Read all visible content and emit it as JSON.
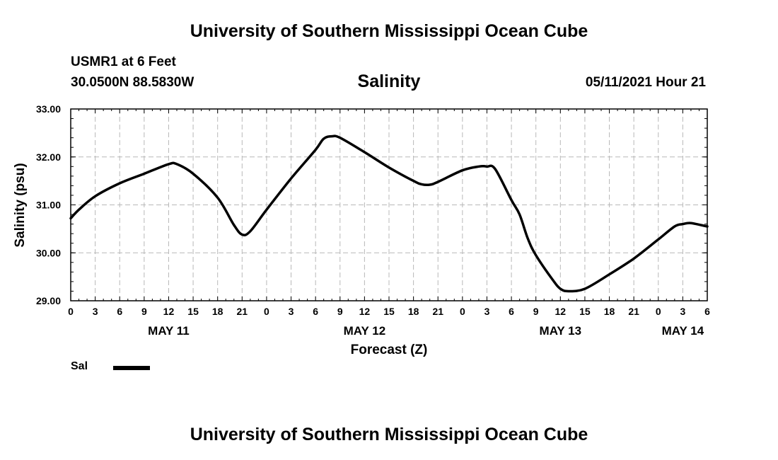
{
  "header": {
    "title_top": "University of Southern Mississippi Ocean Cube",
    "station": "USMR1 at 6 Feet",
    "coords": "30.0500N  88.5830W",
    "chart_title": "Salinity",
    "datetime": "05/11/2021 Hour 21"
  },
  "footer": {
    "title_bottom": "University of Southern Mississippi Ocean Cube"
  },
  "legend": {
    "label": "Sal",
    "color": "#000000"
  },
  "chart_data": {
    "type": "line",
    "title": "Salinity",
    "xlabel": "Forecast (Z)",
    "ylabel": "Salinity (psu)",
    "ylim": [
      29.0,
      33.0
    ],
    "xlim": [
      0,
      78
    ],
    "x_units": "hours from 00Z May 11, 2021",
    "grid": true,
    "y_ticks": [
      {
        "value": 29.0,
        "label": "29.00"
      },
      {
        "value": 30.0,
        "label": "30.00"
      },
      {
        "value": 31.0,
        "label": "31.00"
      },
      {
        "value": 32.0,
        "label": "32.00"
      },
      {
        "value": 33.0,
        "label": "33.00"
      }
    ],
    "x_ticks": [
      {
        "value": 0,
        "label": "0"
      },
      {
        "value": 3,
        "label": "3"
      },
      {
        "value": 6,
        "label": "6"
      },
      {
        "value": 9,
        "label": "9"
      },
      {
        "value": 12,
        "label": "12"
      },
      {
        "value": 15,
        "label": "15"
      },
      {
        "value": 18,
        "label": "18"
      },
      {
        "value": 21,
        "label": "21"
      },
      {
        "value": 24,
        "label": "0"
      },
      {
        "value": 27,
        "label": "3"
      },
      {
        "value": 30,
        "label": "6"
      },
      {
        "value": 33,
        "label": "9"
      },
      {
        "value": 36,
        "label": "12"
      },
      {
        "value": 39,
        "label": "15"
      },
      {
        "value": 42,
        "label": "18"
      },
      {
        "value": 45,
        "label": "21"
      },
      {
        "value": 48,
        "label": "0"
      },
      {
        "value": 51,
        "label": "3"
      },
      {
        "value": 54,
        "label": "6"
      },
      {
        "value": 57,
        "label": "9"
      },
      {
        "value": 60,
        "label": "12"
      },
      {
        "value": 63,
        "label": "15"
      },
      {
        "value": 66,
        "label": "18"
      },
      {
        "value": 69,
        "label": "21"
      },
      {
        "value": 72,
        "label": "0"
      },
      {
        "value": 75,
        "label": "3"
      },
      {
        "value": 78,
        "label": "6"
      }
    ],
    "date_labels": [
      {
        "value": 12,
        "label": "MAY 11"
      },
      {
        "value": 36,
        "label": "MAY 12"
      },
      {
        "value": 60,
        "label": "MAY 13"
      },
      {
        "value": 75,
        "label": "MAY 14"
      }
    ],
    "series": [
      {
        "name": "Sal",
        "x": [
          0,
          1,
          3,
          6,
          9,
          12,
          13,
          15,
          18,
          20,
          21,
          22,
          24,
          27,
          30,
          31,
          32,
          33,
          36,
          39,
          42,
          43,
          44,
          45,
          48,
          50,
          51,
          52,
          54,
          55,
          56,
          57,
          59,
          60,
          61,
          63,
          66,
          69,
          72,
          74,
          75,
          76,
          78
        ],
        "values": [
          30.72,
          30.9,
          31.18,
          31.45,
          31.65,
          31.85,
          31.85,
          31.65,
          31.15,
          30.58,
          30.38,
          30.45,
          30.9,
          31.55,
          32.15,
          32.38,
          32.43,
          32.4,
          32.1,
          31.78,
          31.5,
          31.43,
          31.42,
          31.48,
          31.72,
          31.8,
          31.8,
          31.75,
          31.1,
          30.8,
          30.3,
          29.95,
          29.45,
          29.25,
          29.2,
          29.25,
          29.55,
          29.88,
          30.28,
          30.55,
          30.6,
          30.62,
          30.55
        ]
      }
    ]
  }
}
